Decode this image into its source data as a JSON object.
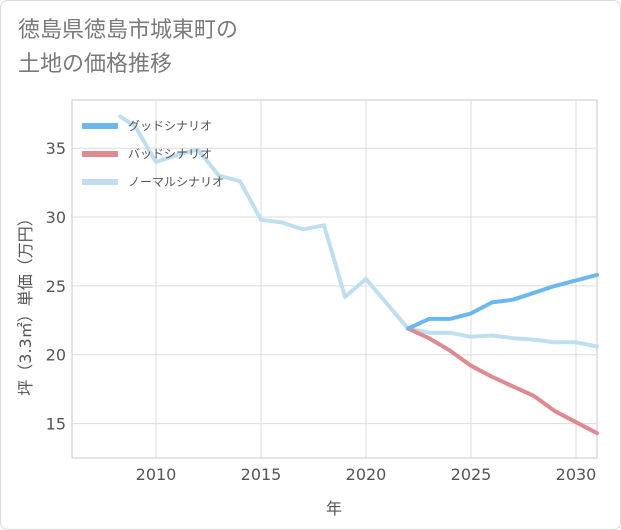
{
  "title_lines": [
    "徳島県徳島市城東町の",
    "土地の価格推移"
  ],
  "chart_data": {
    "type": "line",
    "xlabel": "年",
    "ylabel": "坪（3.3㎡）単価（万円）",
    "xlim": [
      2006,
      2031
    ],
    "ylim": [
      12.5,
      38.5
    ],
    "x_ticks": [
      2010,
      2015,
      2020,
      2025,
      2030
    ],
    "y_ticks": [
      15,
      20,
      25,
      30,
      35
    ],
    "grid": true,
    "legend_position": "top-left",
    "series": [
      {
        "name": "グッドシナリオ",
        "color": "#6cb8ee",
        "x": [
          2022,
          2023,
          2024,
          2025,
          2026,
          2027,
          2028,
          2029,
          2030,
          2031
        ],
        "y": [
          21.9,
          22.6,
          22.6,
          23.0,
          23.8,
          24.0,
          24.5,
          25.0,
          25.4,
          25.8
        ]
      },
      {
        "name": "バッドシナリオ",
        "color": "#dd8a92",
        "x": [
          2022,
          2023,
          2024,
          2025,
          2026,
          2027,
          2028,
          2029,
          2030,
          2031
        ],
        "y": [
          21.9,
          21.2,
          20.3,
          19.2,
          18.4,
          17.7,
          17.0,
          15.9,
          15.1,
          14.3
        ]
      },
      {
        "name": "ノーマルシナリオ",
        "color": "#bfdff0",
        "x": [
          2008.3,
          2009,
          2010,
          2011,
          2012,
          2013,
          2014,
          2015,
          2016,
          2017,
          2018,
          2019,
          2020,
          2021,
          2022,
          2023,
          2024,
          2025,
          2026,
          2027,
          2028,
          2029,
          2030,
          2031
        ],
        "y": [
          37.3,
          36.6,
          34.0,
          34.5,
          34.9,
          33.0,
          32.6,
          29.8,
          29.6,
          29.1,
          29.4,
          24.2,
          25.5,
          23.7,
          21.9,
          21.6,
          21.6,
          21.3,
          21.4,
          21.2,
          21.1,
          20.9,
          20.9,
          20.6
        ]
      }
    ]
  }
}
